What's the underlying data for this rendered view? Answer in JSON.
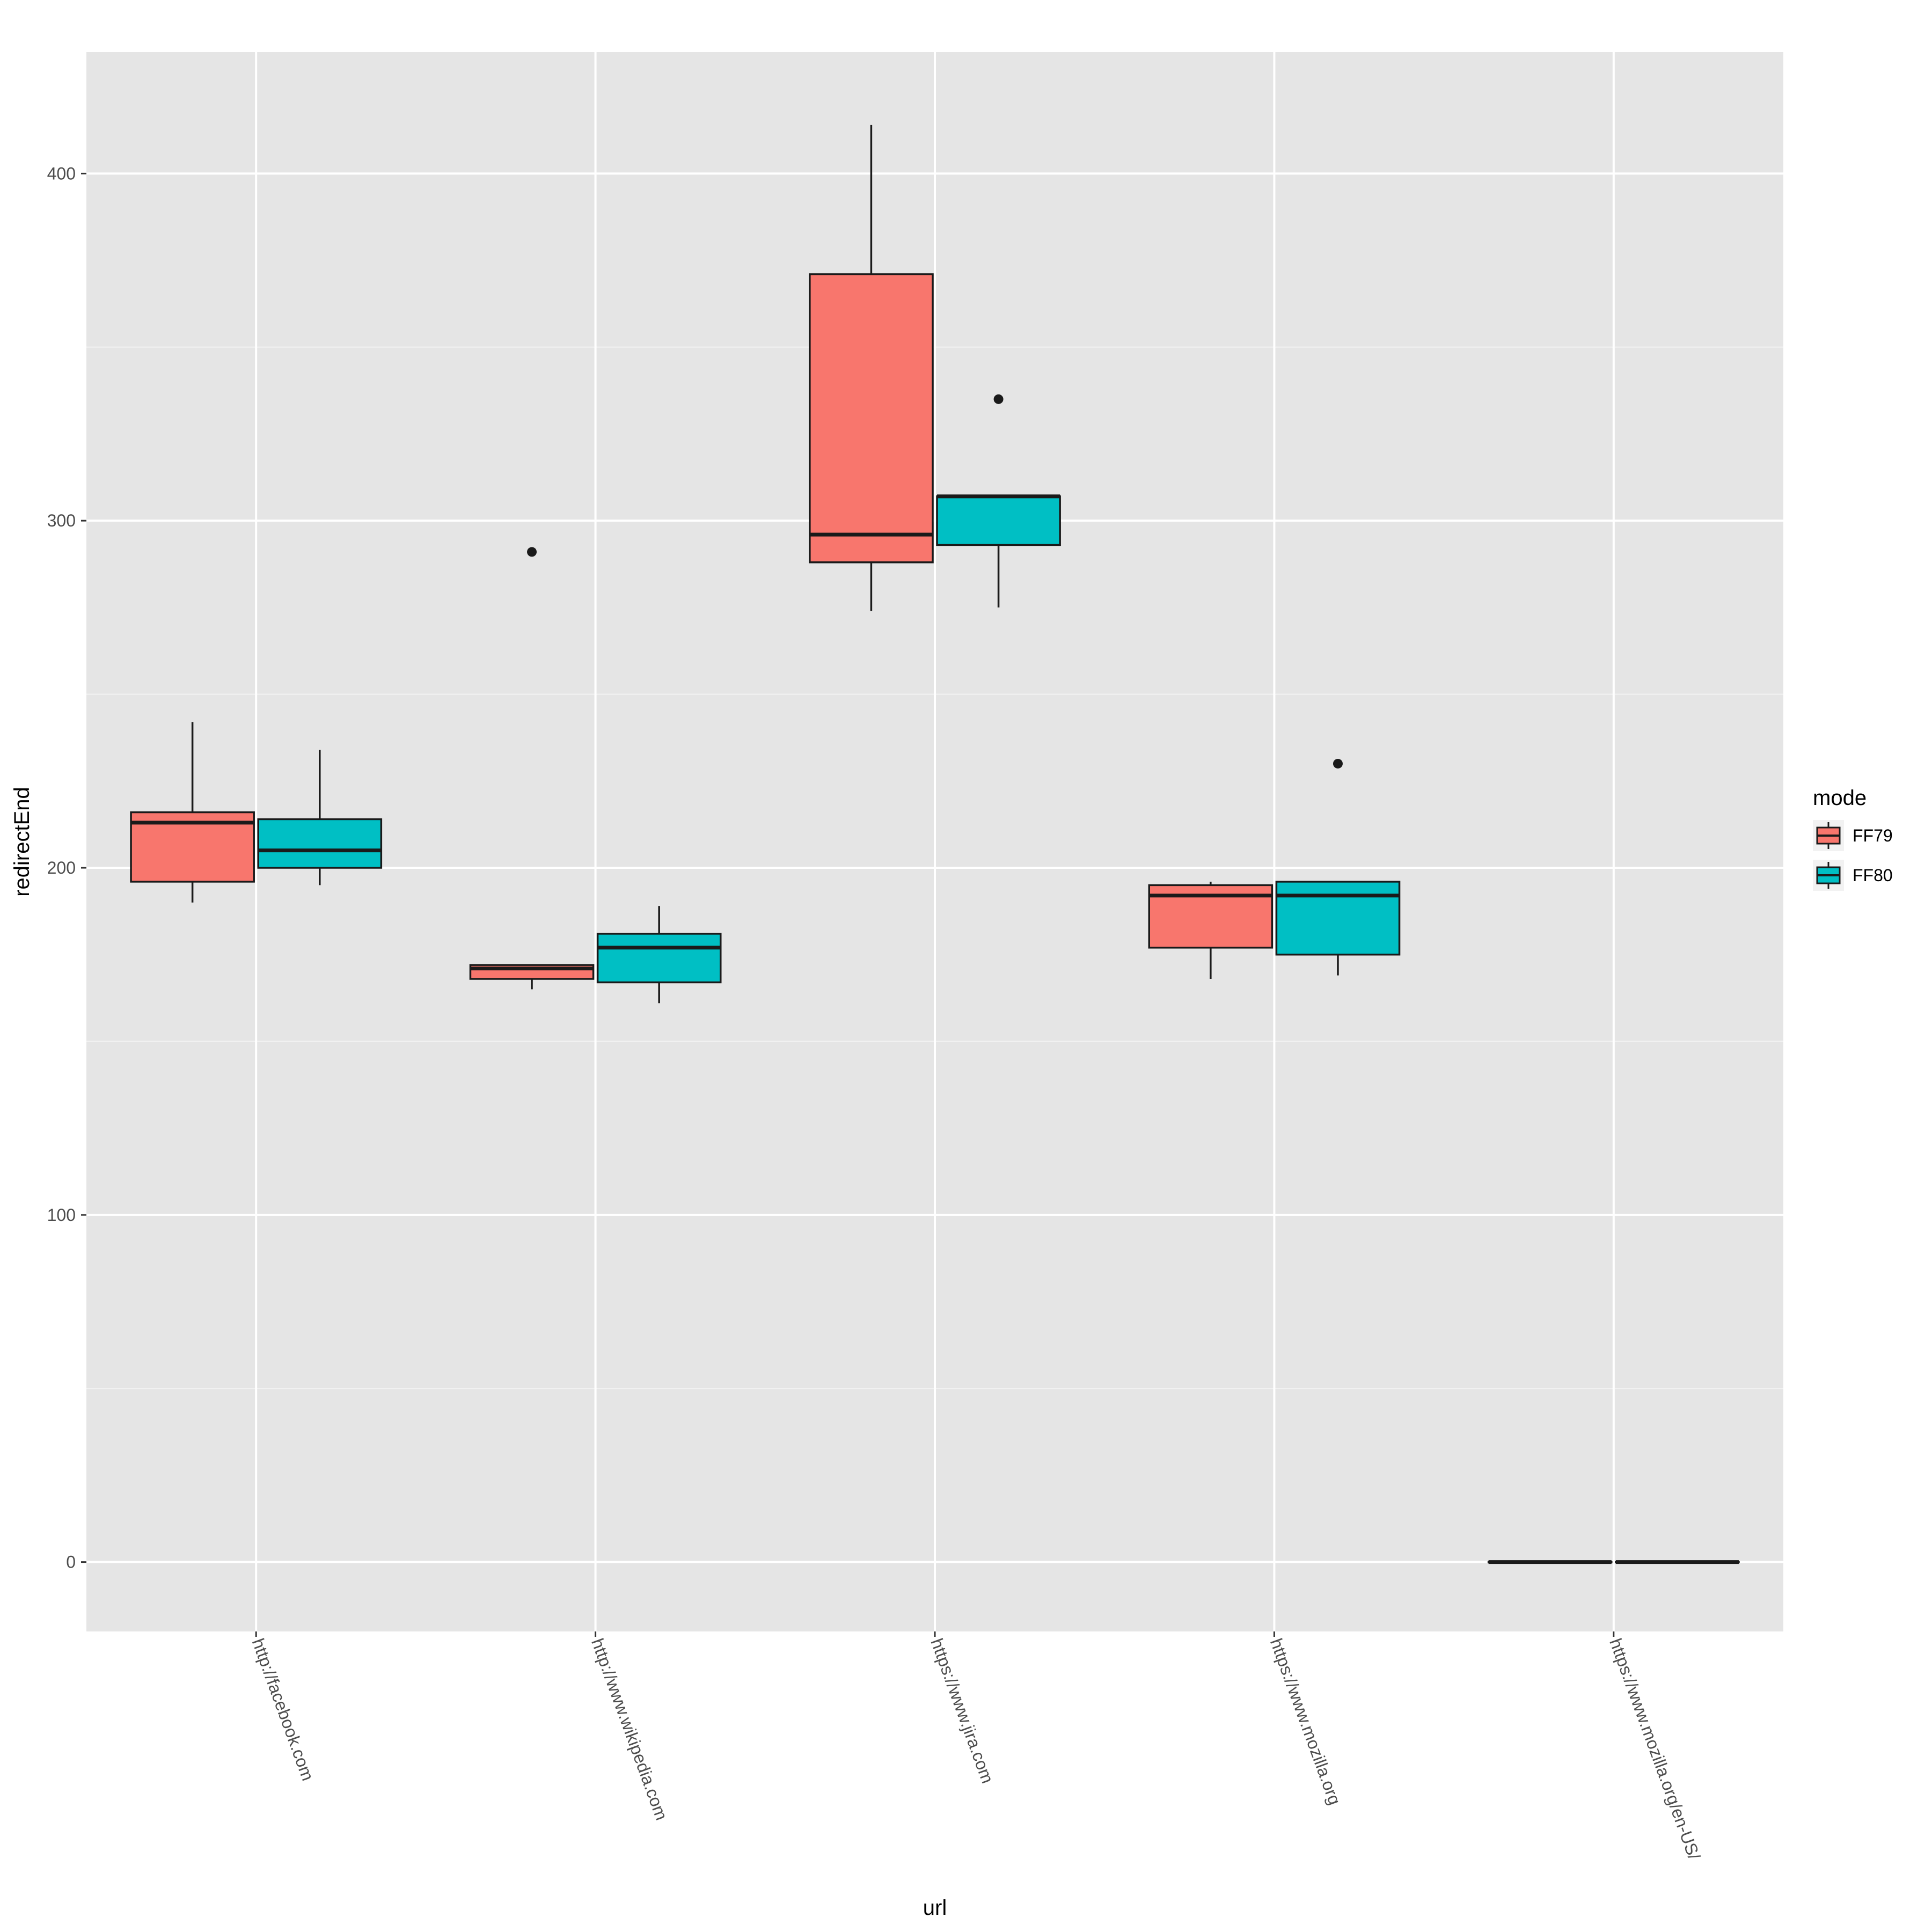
{
  "chart_data": {
    "type": "boxplot",
    "xlabel": "url",
    "ylabel": "redirectEnd",
    "ylim": [
      -20,
      435
    ],
    "y_ticks": [
      0,
      100,
      200,
      300,
      400
    ],
    "grid": true,
    "legend": {
      "title": "mode",
      "placement": "right"
    },
    "categories": [
      "http://facebook.com",
      "http://www.wikipedia.com",
      "https://www.jira.com",
      "https://www.mozilla.org",
      "https://www.mozilla.org/en-US/"
    ],
    "series": [
      {
        "name": "FF79",
        "color": "#F8766D",
        "boxes": [
          {
            "whisker_low": 190,
            "q1": 196,
            "median": 213,
            "q3": 216,
            "whisker_high": 242,
            "outliers": []
          },
          {
            "whisker_low": 165,
            "q1": 168,
            "median": 171,
            "q3": 172,
            "whisker_high": 172,
            "outliers": [
              291
            ]
          },
          {
            "whisker_low": 274,
            "q1": 288,
            "median": 296,
            "q3": 371,
            "whisker_high": 414,
            "outliers": []
          },
          {
            "whisker_low": 168,
            "q1": 177,
            "median": 192,
            "q3": 195,
            "whisker_high": 196,
            "outliers": []
          },
          {
            "whisker_low": 0,
            "q1": 0,
            "median": 0,
            "q3": 0,
            "whisker_high": 0,
            "outliers": []
          }
        ]
      },
      {
        "name": "FF80",
        "color": "#00BFC4",
        "boxes": [
          {
            "whisker_low": 195,
            "q1": 200,
            "median": 205,
            "q3": 214,
            "whisker_high": 234,
            "outliers": []
          },
          {
            "whisker_low": 161,
            "q1": 167,
            "median": 177,
            "q3": 181,
            "whisker_high": 189,
            "outliers": []
          },
          {
            "whisker_low": 275,
            "q1": 293,
            "median": 307,
            "q3": 307,
            "whisker_high": 307,
            "outliers": [
              335
            ]
          },
          {
            "whisker_low": 169,
            "q1": 175,
            "median": 192,
            "q3": 196,
            "whisker_high": 196,
            "outliers": [
              230
            ]
          },
          {
            "whisker_low": 0,
            "q1": 0,
            "median": 0,
            "q3": 0,
            "whisker_high": 0,
            "outliers": []
          }
        ]
      }
    ]
  }
}
